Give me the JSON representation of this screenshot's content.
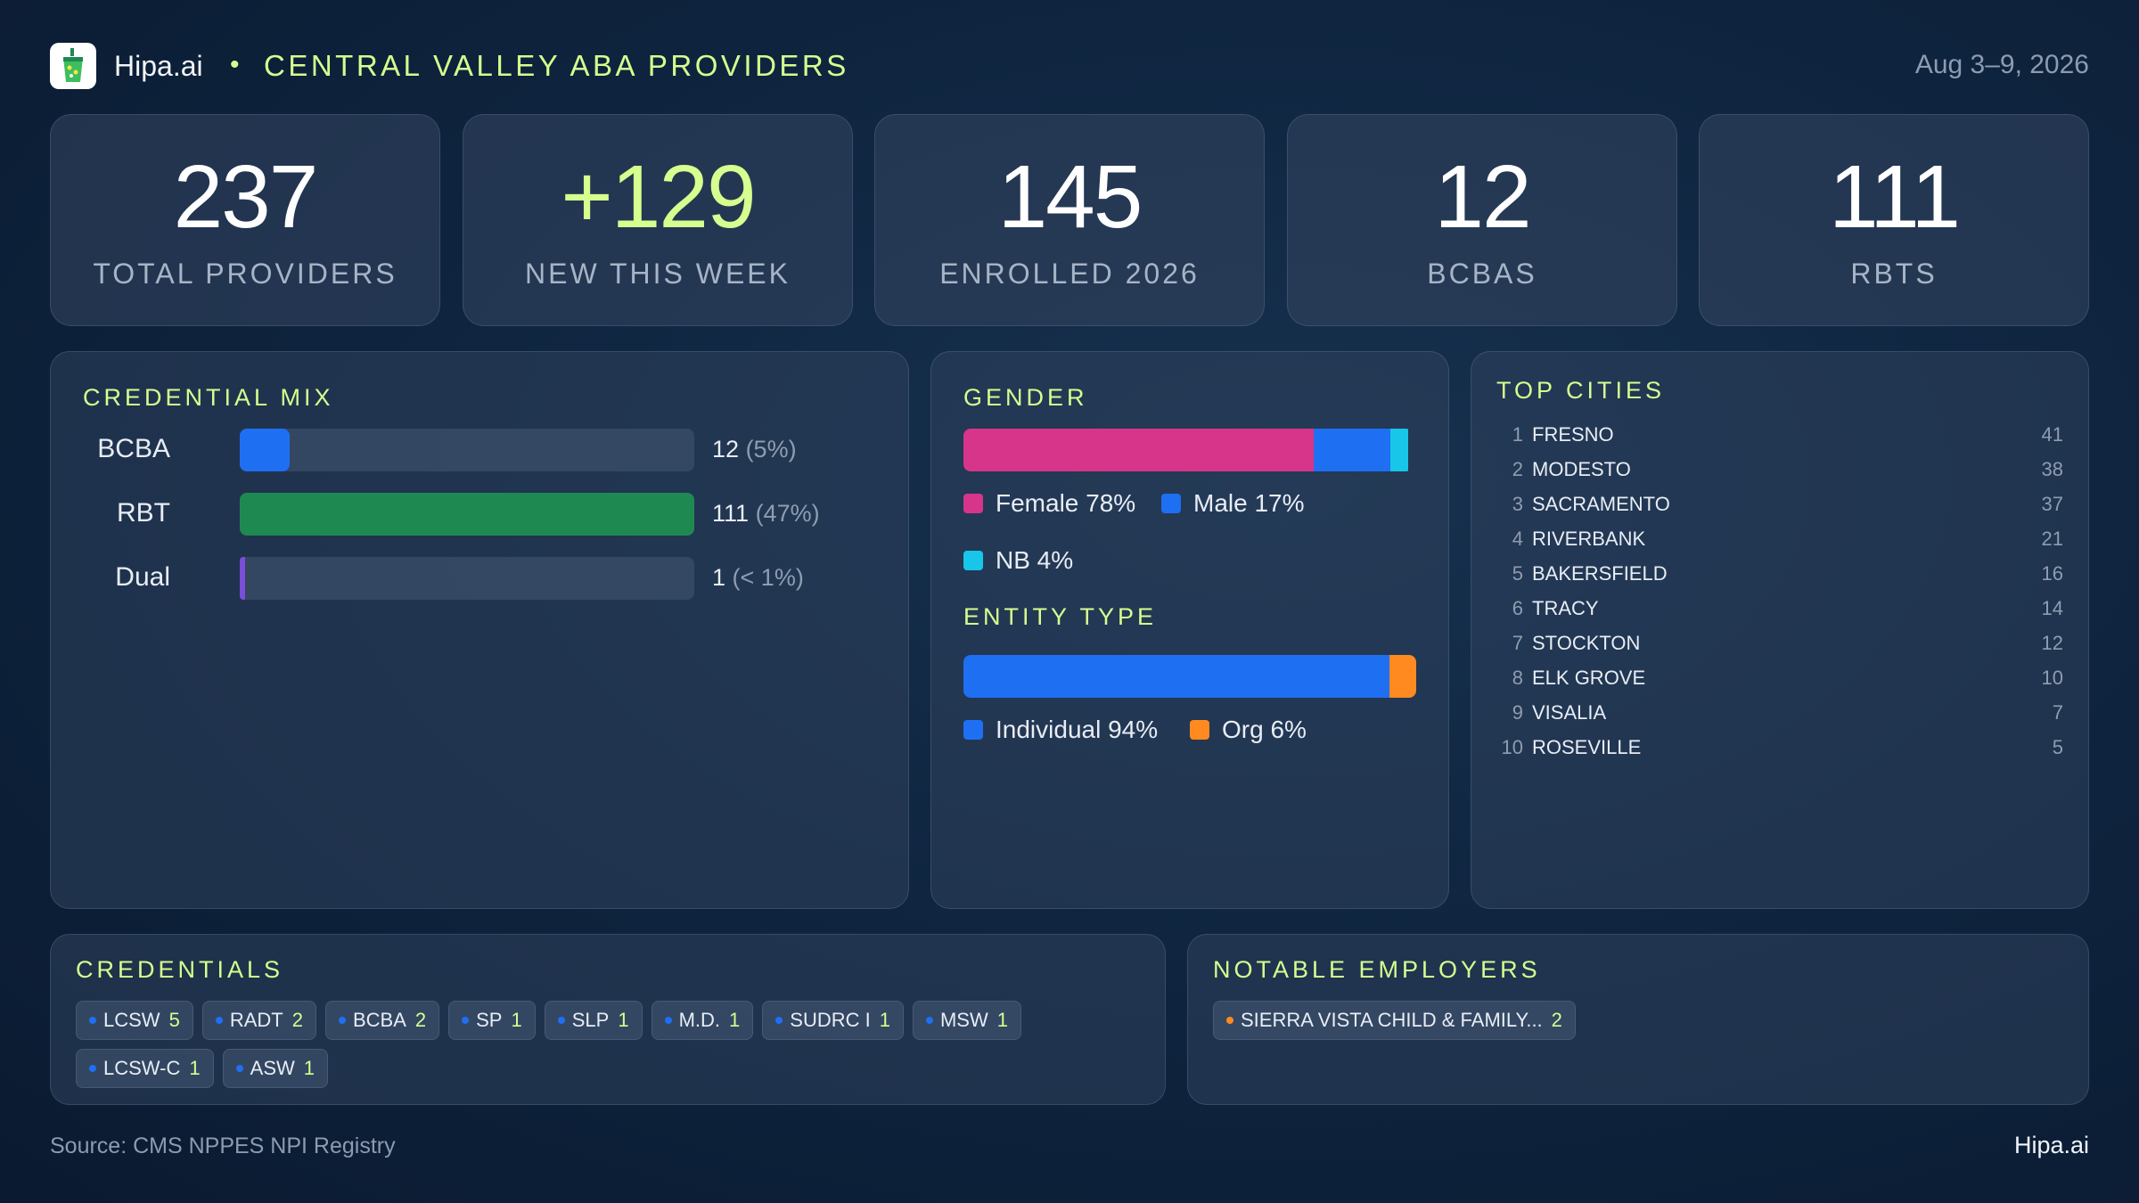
{
  "header": {
    "brand": "Hipa.ai",
    "separator": "•",
    "title": "CENTRAL VALLEY ABA PROVIDERS",
    "date_range": "Aug 3–9, 2026"
  },
  "stats": [
    {
      "value": "237",
      "label": "TOTAL PROVIDERS"
    },
    {
      "value": "+129",
      "label": "NEW THIS WEEK"
    },
    {
      "value": "145",
      "label": "ENROLLED 2026"
    },
    {
      "value": "12",
      "label": "BCBAS"
    },
    {
      "value": "111",
      "label": "RBTS"
    }
  ],
  "credential_mix": {
    "title": "CREDENTIAL MIX",
    "rows": [
      {
        "label": "BCBA",
        "count": "12",
        "pct": "(5%)",
        "fraction": 0.11,
        "color": "#1f6ff2"
      },
      {
        "label": "RBT",
        "count": "111",
        "pct": "(47%)",
        "fraction": 1.0,
        "color": "#1e8a52"
      },
      {
        "label": "Dual",
        "count": "1",
        "pct": "(< 1%)",
        "fraction": 0.012,
        "color": "#7c4dd8"
      }
    ]
  },
  "gender": {
    "title": "GENDER",
    "segments": [
      {
        "label": "Female 78%",
        "fraction": 0.78,
        "color": "#d6358a"
      },
      {
        "label": "Male 17%",
        "fraction": 0.17,
        "color": "#1f6ff2"
      },
      {
        "label": "NB 4%",
        "fraction": 0.04,
        "color": "#17c6e8"
      }
    ]
  },
  "entity_type": {
    "title": "ENTITY TYPE",
    "segments": [
      {
        "label": "Individual 94%",
        "fraction": 0.94,
        "color": "#1f6ff2"
      },
      {
        "label": "Org 6%",
        "fraction": 0.06,
        "color": "#ff8a1f"
      }
    ]
  },
  "top_cities": {
    "title": "TOP CITIES",
    "rows": [
      {
        "rank": "1",
        "name": "FRESNO",
        "count": "41"
      },
      {
        "rank": "2",
        "name": "MODESTO",
        "count": "38"
      },
      {
        "rank": "3",
        "name": "SACRAMENTO",
        "count": "37"
      },
      {
        "rank": "4",
        "name": "RIVERBANK",
        "count": "21"
      },
      {
        "rank": "5",
        "name": "BAKERSFIELD",
        "count": "16"
      },
      {
        "rank": "6",
        "name": "TRACY",
        "count": "14"
      },
      {
        "rank": "7",
        "name": "STOCKTON",
        "count": "12"
      },
      {
        "rank": "8",
        "name": "ELK GROVE",
        "count": "10"
      },
      {
        "rank": "9",
        "name": "VISALIA",
        "count": "7"
      },
      {
        "rank": "10",
        "name": "ROSEVILLE",
        "count": "5"
      }
    ]
  },
  "credentials": {
    "title": "CREDENTIALS",
    "chips": [
      {
        "label": "LCSW",
        "count": "5"
      },
      {
        "label": "RADT",
        "count": "2"
      },
      {
        "label": "BCBA",
        "count": "2"
      },
      {
        "label": "SP",
        "count": "1"
      },
      {
        "label": "SLP",
        "count": "1"
      },
      {
        "label": "M.D.",
        "count": "1"
      },
      {
        "label": "SUDRC I",
        "count": "1"
      },
      {
        "label": "MSW",
        "count": "1"
      },
      {
        "label": "LCSW-C",
        "count": "1"
      },
      {
        "label": "ASW",
        "count": "1"
      }
    ],
    "dot_color": "#1f6ff2"
  },
  "employers": {
    "title": "NOTABLE EMPLOYERS",
    "chips": [
      {
        "label": "SIERRA VISTA CHILD & FAMILY...",
        "count": "2"
      }
    ],
    "dot_color": "#ff8a1f"
  },
  "footer": {
    "source": "Source: CMS NPPES NPI Registry",
    "brand": "Hipa.ai"
  },
  "colors": {
    "accent": "#d6ff8f",
    "background": "#0f2540"
  }
}
